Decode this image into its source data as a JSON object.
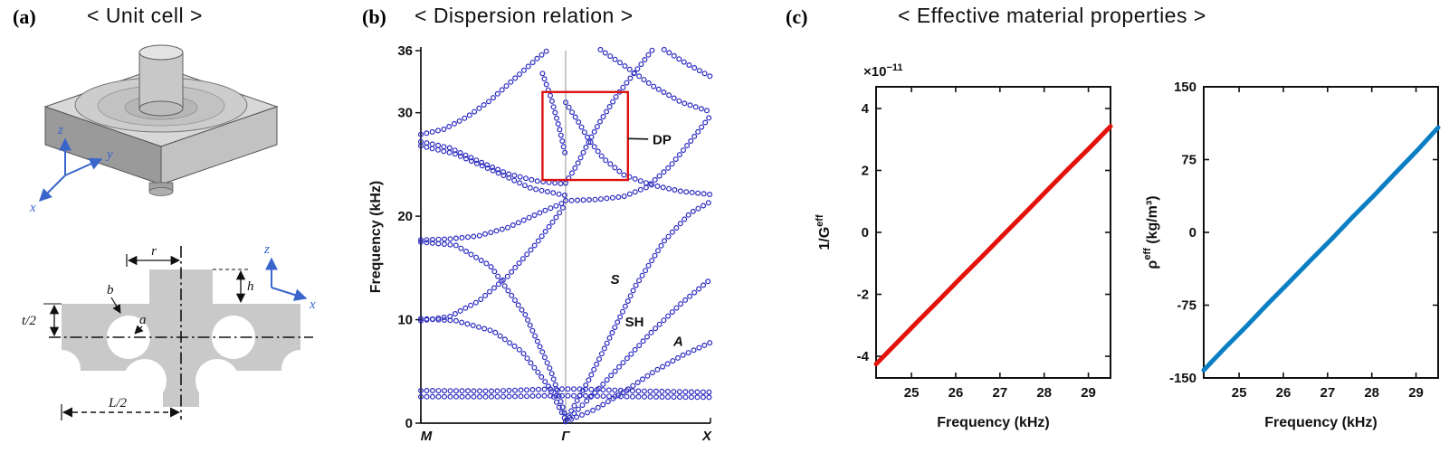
{
  "panels": {
    "a": {
      "label": "(a)",
      "title": "< Unit cell >",
      "dims": {
        "r": "r",
        "b": "b",
        "h": "h",
        "a": "a",
        "t_half": "t/2",
        "L_half": "L/2"
      },
      "axes3d": {
        "x": "x",
        "y": "y",
        "z": "z"
      },
      "axes2d": {
        "x": "x",
        "z": "z"
      },
      "colors": {
        "solid": "#c9c9c9",
        "axis": "#3a66cc"
      }
    },
    "b": {
      "label": "(b)",
      "title": "< Dispersion relation >"
    },
    "c": {
      "label": "(c)",
      "title": "< Effective material properties >"
    }
  },
  "chart_data": [
    {
      "type": "scatter",
      "name": "dispersion-relation",
      "ylabel": "Frequency (kHz)",
      "ylim": [
        0,
        36
      ],
      "yticks": [
        0,
        10,
        20,
        30,
        36
      ],
      "xticks": [
        "M",
        "Γ",
        "X"
      ],
      "marker": "open-circle",
      "color": "#2a2ac0",
      "branches": [
        [
          [
            0,
            2.55
          ],
          [
            0.25,
            2.55
          ],
          [
            0.45,
            2.65
          ],
          [
            0.55,
            2.65
          ],
          [
            0.75,
            2.55
          ],
          [
            1,
            2.5
          ]
        ],
        [
          [
            0,
            3.15
          ],
          [
            0.25,
            3.1
          ],
          [
            0.45,
            3.3
          ],
          [
            0.55,
            3.3
          ],
          [
            0.75,
            3.1
          ],
          [
            1,
            3.0
          ]
        ],
        [
          [
            0,
            10.1
          ],
          [
            0.12,
            9.9
          ],
          [
            0.25,
            8.9
          ],
          [
            0.35,
            6.9
          ],
          [
            0.44,
            3.6
          ],
          [
            0.5,
            0.3
          ]
        ],
        [
          [
            0,
            17.5
          ],
          [
            0.12,
            17.2
          ],
          [
            0.24,
            15.2
          ],
          [
            0.36,
            10.5
          ],
          [
            0.45,
            5.0
          ],
          [
            0.5,
            0.6
          ]
        ],
        [
          [
            0,
            17.7
          ],
          [
            0.1,
            17.8
          ],
          [
            0.2,
            18.1
          ],
          [
            0.3,
            18.9
          ],
          [
            0.4,
            20.2
          ],
          [
            0.5,
            21.4
          ]
        ],
        [
          [
            0,
            9.9
          ],
          [
            0.1,
            10.3
          ],
          [
            0.2,
            11.8
          ],
          [
            0.3,
            14.2
          ],
          [
            0.4,
            17.4
          ],
          [
            0.47,
            20.0
          ],
          [
            0.5,
            21.2
          ]
        ],
        [
          [
            0,
            27.2
          ],
          [
            0.1,
            26.6
          ],
          [
            0.2,
            25.3
          ],
          [
            0.3,
            24.1
          ],
          [
            0.4,
            23.4
          ],
          [
            0.5,
            23.1
          ]
        ],
        [
          [
            0,
            27.9
          ],
          [
            0.08,
            28.4
          ],
          [
            0.16,
            29.6
          ],
          [
            0.24,
            31.2
          ],
          [
            0.32,
            33.2
          ],
          [
            0.4,
            35.2
          ],
          [
            0.44,
            36.1
          ]
        ],
        [
          [
            0,
            26.8
          ],
          [
            0.12,
            26.0
          ],
          [
            0.25,
            24.4
          ],
          [
            0.38,
            22.7
          ],
          [
            0.5,
            22.0
          ]
        ],
        [
          [
            0.42,
            33.8
          ],
          [
            0.45,
            31.4
          ],
          [
            0.48,
            28.3
          ],
          [
            0.5,
            25.8
          ]
        ],
        [
          [
            0.5,
            0.15
          ],
          [
            0.6,
            1.3
          ],
          [
            0.7,
            3.0
          ],
          [
            0.8,
            4.9
          ],
          [
            0.9,
            6.5
          ],
          [
            1,
            7.8
          ]
        ],
        [
          [
            0.5,
            0.15
          ],
          [
            0.6,
            2.9
          ],
          [
            0.7,
            5.9
          ],
          [
            0.8,
            8.9
          ],
          [
            0.9,
            11.6
          ],
          [
            1,
            13.9
          ]
        ],
        [
          [
            0.5,
            0.2
          ],
          [
            0.58,
            4.2
          ],
          [
            0.66,
            8.7
          ],
          [
            0.74,
            13.2
          ],
          [
            0.84,
            17.6
          ],
          [
            0.93,
            20.3
          ],
          [
            1,
            21.4
          ]
        ],
        [
          [
            0.5,
            21.5
          ],
          [
            0.6,
            21.6
          ],
          [
            0.7,
            21.9
          ],
          [
            0.78,
            22.8
          ],
          [
            0.86,
            24.8
          ],
          [
            0.93,
            27.2
          ],
          [
            1,
            29.7
          ]
        ],
        [
          [
            0.5,
            23.2
          ],
          [
            0.54,
            25.0
          ],
          [
            0.58,
            27.2
          ],
          [
            0.62,
            29.2
          ],
          [
            0.68,
            31.8
          ],
          [
            0.75,
            34.3
          ],
          [
            0.8,
            36.1
          ]
        ],
        [
          [
            0.5,
            31.0
          ],
          [
            0.54,
            29.3
          ],
          [
            0.58,
            27.4
          ],
          [
            0.63,
            25.6
          ],
          [
            0.7,
            24.0
          ],
          [
            0.8,
            23.0
          ],
          [
            0.9,
            22.4
          ],
          [
            1,
            22.1
          ]
        ],
        [
          [
            0.62,
            36.1
          ],
          [
            0.7,
            34.6
          ],
          [
            0.8,
            32.6
          ],
          [
            0.9,
            31.0
          ],
          [
            1,
            30.1
          ]
        ],
        [
          [
            0.84,
            36.1
          ],
          [
            0.92,
            34.7
          ],
          [
            1,
            33.5
          ]
        ]
      ],
      "highlight_box": {
        "x0": 0.42,
        "x1": 0.715,
        "y0": 23.5,
        "y1": 32.0,
        "color": "#dd1111"
      },
      "annotations": [
        {
          "text": "DP",
          "x": 0.8,
          "y": 27.4,
          "italic": false,
          "leader": [
            0.715,
            27.5,
            0.785,
            27.45
          ]
        },
        {
          "text": "S",
          "x": 0.655,
          "y": 13.9,
          "italic": true
        },
        {
          "text": "SH",
          "x": 0.705,
          "y": 9.8,
          "italic": false
        },
        {
          "text": "A",
          "x": 0.872,
          "y": 7.9,
          "italic": true
        }
      ]
    },
    {
      "type": "line",
      "name": "inverse-effective-shear-modulus",
      "xlabel": "Frequency (kHz)",
      "ylabel_parts": {
        "pre": "1/G",
        "sup": "eff",
        "post": ""
      },
      "offset_parts": {
        "base": "×10",
        "exp": "−11"
      },
      "xlim": [
        24.2,
        29.5
      ],
      "ylim": [
        -4.7,
        4.7
      ],
      "xticks": [
        25,
        26,
        27,
        28,
        29
      ],
      "yticks": [
        -4,
        -2,
        0,
        2,
        4
      ],
      "color": "#e3120b",
      "x": [
        24.2,
        24.68,
        25.16,
        25.64,
        26.12,
        26.61,
        27.09,
        27.57,
        28.05,
        28.53,
        29.02,
        29.5
      ],
      "y": [
        -4.25,
        -3.55,
        -2.85,
        -2.16,
        -1.46,
        -0.76,
        -0.06,
        0.63,
        1.33,
        2.03,
        2.72,
        3.42
      ]
    },
    {
      "type": "line",
      "name": "effective-mass-density",
      "xlabel": "Frequency (kHz)",
      "ylabel_parts": {
        "pre": "ρ",
        "sup": "eff",
        "post": " (kg/m³)"
      },
      "xlim": [
        24.2,
        29.5
      ],
      "ylim": [
        -150,
        150
      ],
      "xticks": [
        25,
        26,
        27,
        28,
        29
      ],
      "yticks": [
        -150,
        -75,
        0,
        75,
        150
      ],
      "color": "#0b7fc4",
      "x": [
        24.2,
        24.68,
        25.16,
        25.64,
        26.12,
        26.61,
        27.09,
        27.57,
        28.05,
        28.53,
        29.02,
        29.5
      ],
      "y": [
        -142,
        -119,
        -97,
        -74,
        -52,
        -29,
        -7,
        16,
        38,
        61,
        84,
        108
      ]
    }
  ]
}
